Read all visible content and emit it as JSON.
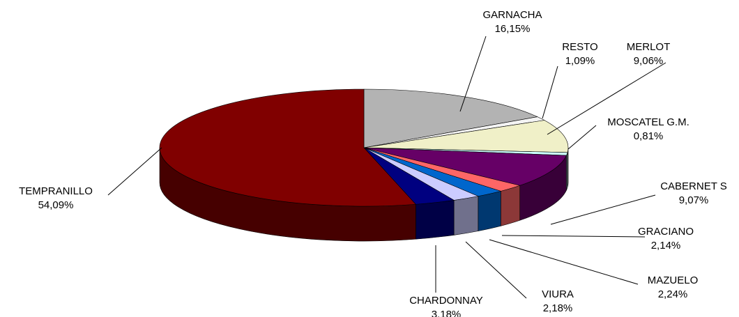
{
  "chart_data": {
    "type": "pie3d",
    "categories": [
      "GARNACHA",
      "RESTO",
      "MERLOT",
      "MOSCATEL G.M.",
      "CABERNET S",
      "GRACIANO",
      "MAZUELO",
      "VIURA",
      "CHARDONNAY",
      "TEMPRANILLO"
    ],
    "values": [
      16.15,
      1.09,
      9.06,
      0.81,
      9.07,
      2.14,
      2.24,
      2.18,
      3.18,
      54.09
    ],
    "value_labels": [
      "16,15%",
      "1,09%",
      "9,06%",
      "0,81%",
      "9,07%",
      "2,14%",
      "2,24%",
      "2,18%",
      "3,18%",
      "54,09%"
    ],
    "colors": [
      "#b3b3b3",
      "#f4f4f4",
      "#f0f0c8",
      "#ccffff",
      "#660066",
      "#ff6666",
      "#0066cc",
      "#ccccff",
      "#000080",
      "#800000"
    ]
  }
}
